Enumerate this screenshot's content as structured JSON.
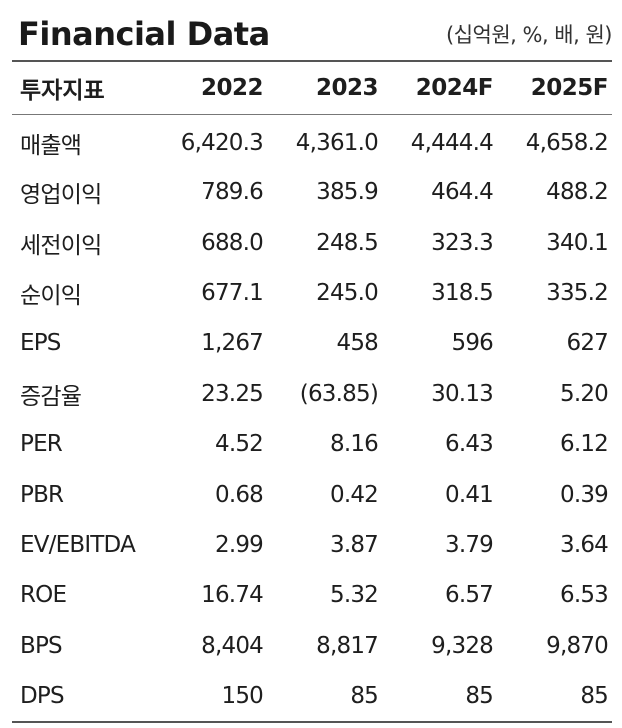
{
  "header": {
    "title": "Financial Data",
    "unit": "(십억원, %, 배, 원)"
  },
  "table": {
    "columns": [
      "투자지표",
      "2022",
      "2023",
      "2024F",
      "2025F"
    ],
    "rows": [
      {
        "label": "매출액",
        "values": [
          "6,420.3",
          "4,361.0",
          "4,444.4",
          "4,658.2"
        ]
      },
      {
        "label": "영업이익",
        "values": [
          "789.6",
          "385.9",
          "464.4",
          "488.2"
        ]
      },
      {
        "label": "세전이익",
        "values": [
          "688.0",
          "248.5",
          "323.3",
          "340.1"
        ]
      },
      {
        "label": "순이익",
        "values": [
          "677.1",
          "245.0",
          "318.5",
          "335.2"
        ]
      },
      {
        "label": "EPS",
        "values": [
          "1,267",
          "458",
          "596",
          "627"
        ]
      },
      {
        "label": "증감율",
        "values": [
          "23.25",
          "(63.85)",
          "30.13",
          "5.20"
        ]
      },
      {
        "label": "PER",
        "values": [
          "4.52",
          "8.16",
          "6.43",
          "6.12"
        ]
      },
      {
        "label": "PBR",
        "values": [
          "0.68",
          "0.42",
          "0.41",
          "0.39"
        ]
      },
      {
        "label": "EV/EBITDA",
        "values": [
          "2.99",
          "3.87",
          "3.79",
          "3.64"
        ]
      },
      {
        "label": "ROE",
        "values": [
          "16.74",
          "5.32",
          "6.57",
          "6.53"
        ]
      },
      {
        "label": "BPS",
        "values": [
          "8,404",
          "8,817",
          "9,328",
          "9,870"
        ]
      },
      {
        "label": "DPS",
        "values": [
          "150",
          "85",
          "85",
          "85"
        ]
      }
    ]
  }
}
